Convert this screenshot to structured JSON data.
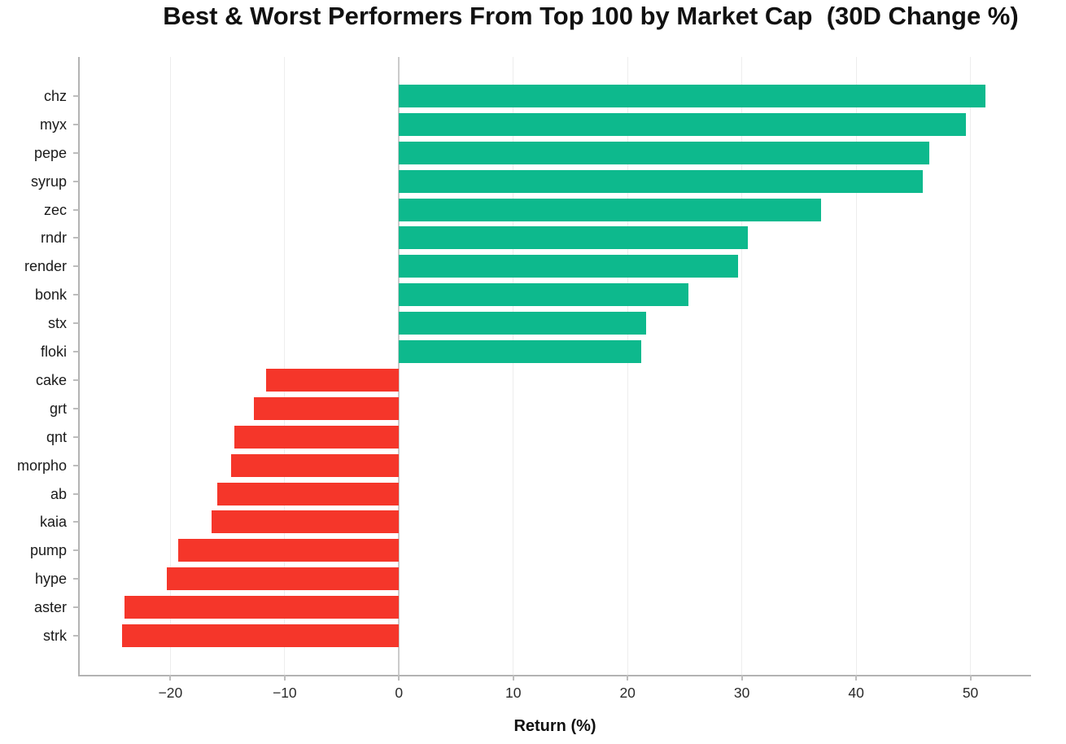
{
  "colors": {
    "positive": "#0db98d",
    "negative": "#f5362a",
    "grid": "#ededed",
    "zero_line": "#cbcbcb",
    "spine": "#b3b3b3",
    "tick": "#bdbdbd",
    "title_text": "#111111",
    "label_text": "#1a1a1a"
  },
  "chart_data": {
    "type": "bar",
    "orientation": "horizontal",
    "title": "Best & Worst Performers From Top 100 by Market Cap  (30D Change %)",
    "xlabel": "Return (%)",
    "ylabel": "",
    "grid": true,
    "legend": false,
    "xlim": [
      -28,
      55.3
    ],
    "x_ticks": [
      {
        "value": -20,
        "label": "−20"
      },
      {
        "value": -10,
        "label": "−10"
      },
      {
        "value": 0,
        "label": "0"
      },
      {
        "value": 10,
        "label": "10"
      },
      {
        "value": 20,
        "label": "20"
      },
      {
        "value": 30,
        "label": "30"
      },
      {
        "value": 40,
        "label": "40"
      },
      {
        "value": 50,
        "label": "50"
      }
    ],
    "categories": [
      "chz",
      "myx",
      "pepe",
      "syrup",
      "zec",
      "rndr",
      "render",
      "bonk",
      "stx",
      "floki",
      "cake",
      "grt",
      "qnt",
      "morpho",
      "ab",
      "kaia",
      "pump",
      "hype",
      "aster",
      "strk"
    ],
    "values": [
      51.3,
      49.6,
      46.4,
      45.8,
      36.9,
      30.5,
      29.7,
      25.3,
      21.6,
      21.2,
      -11.6,
      -12.7,
      -14.4,
      -14.7,
      -15.9,
      -16.4,
      -19.3,
      -20.3,
      -24.0,
      -24.2
    ]
  }
}
